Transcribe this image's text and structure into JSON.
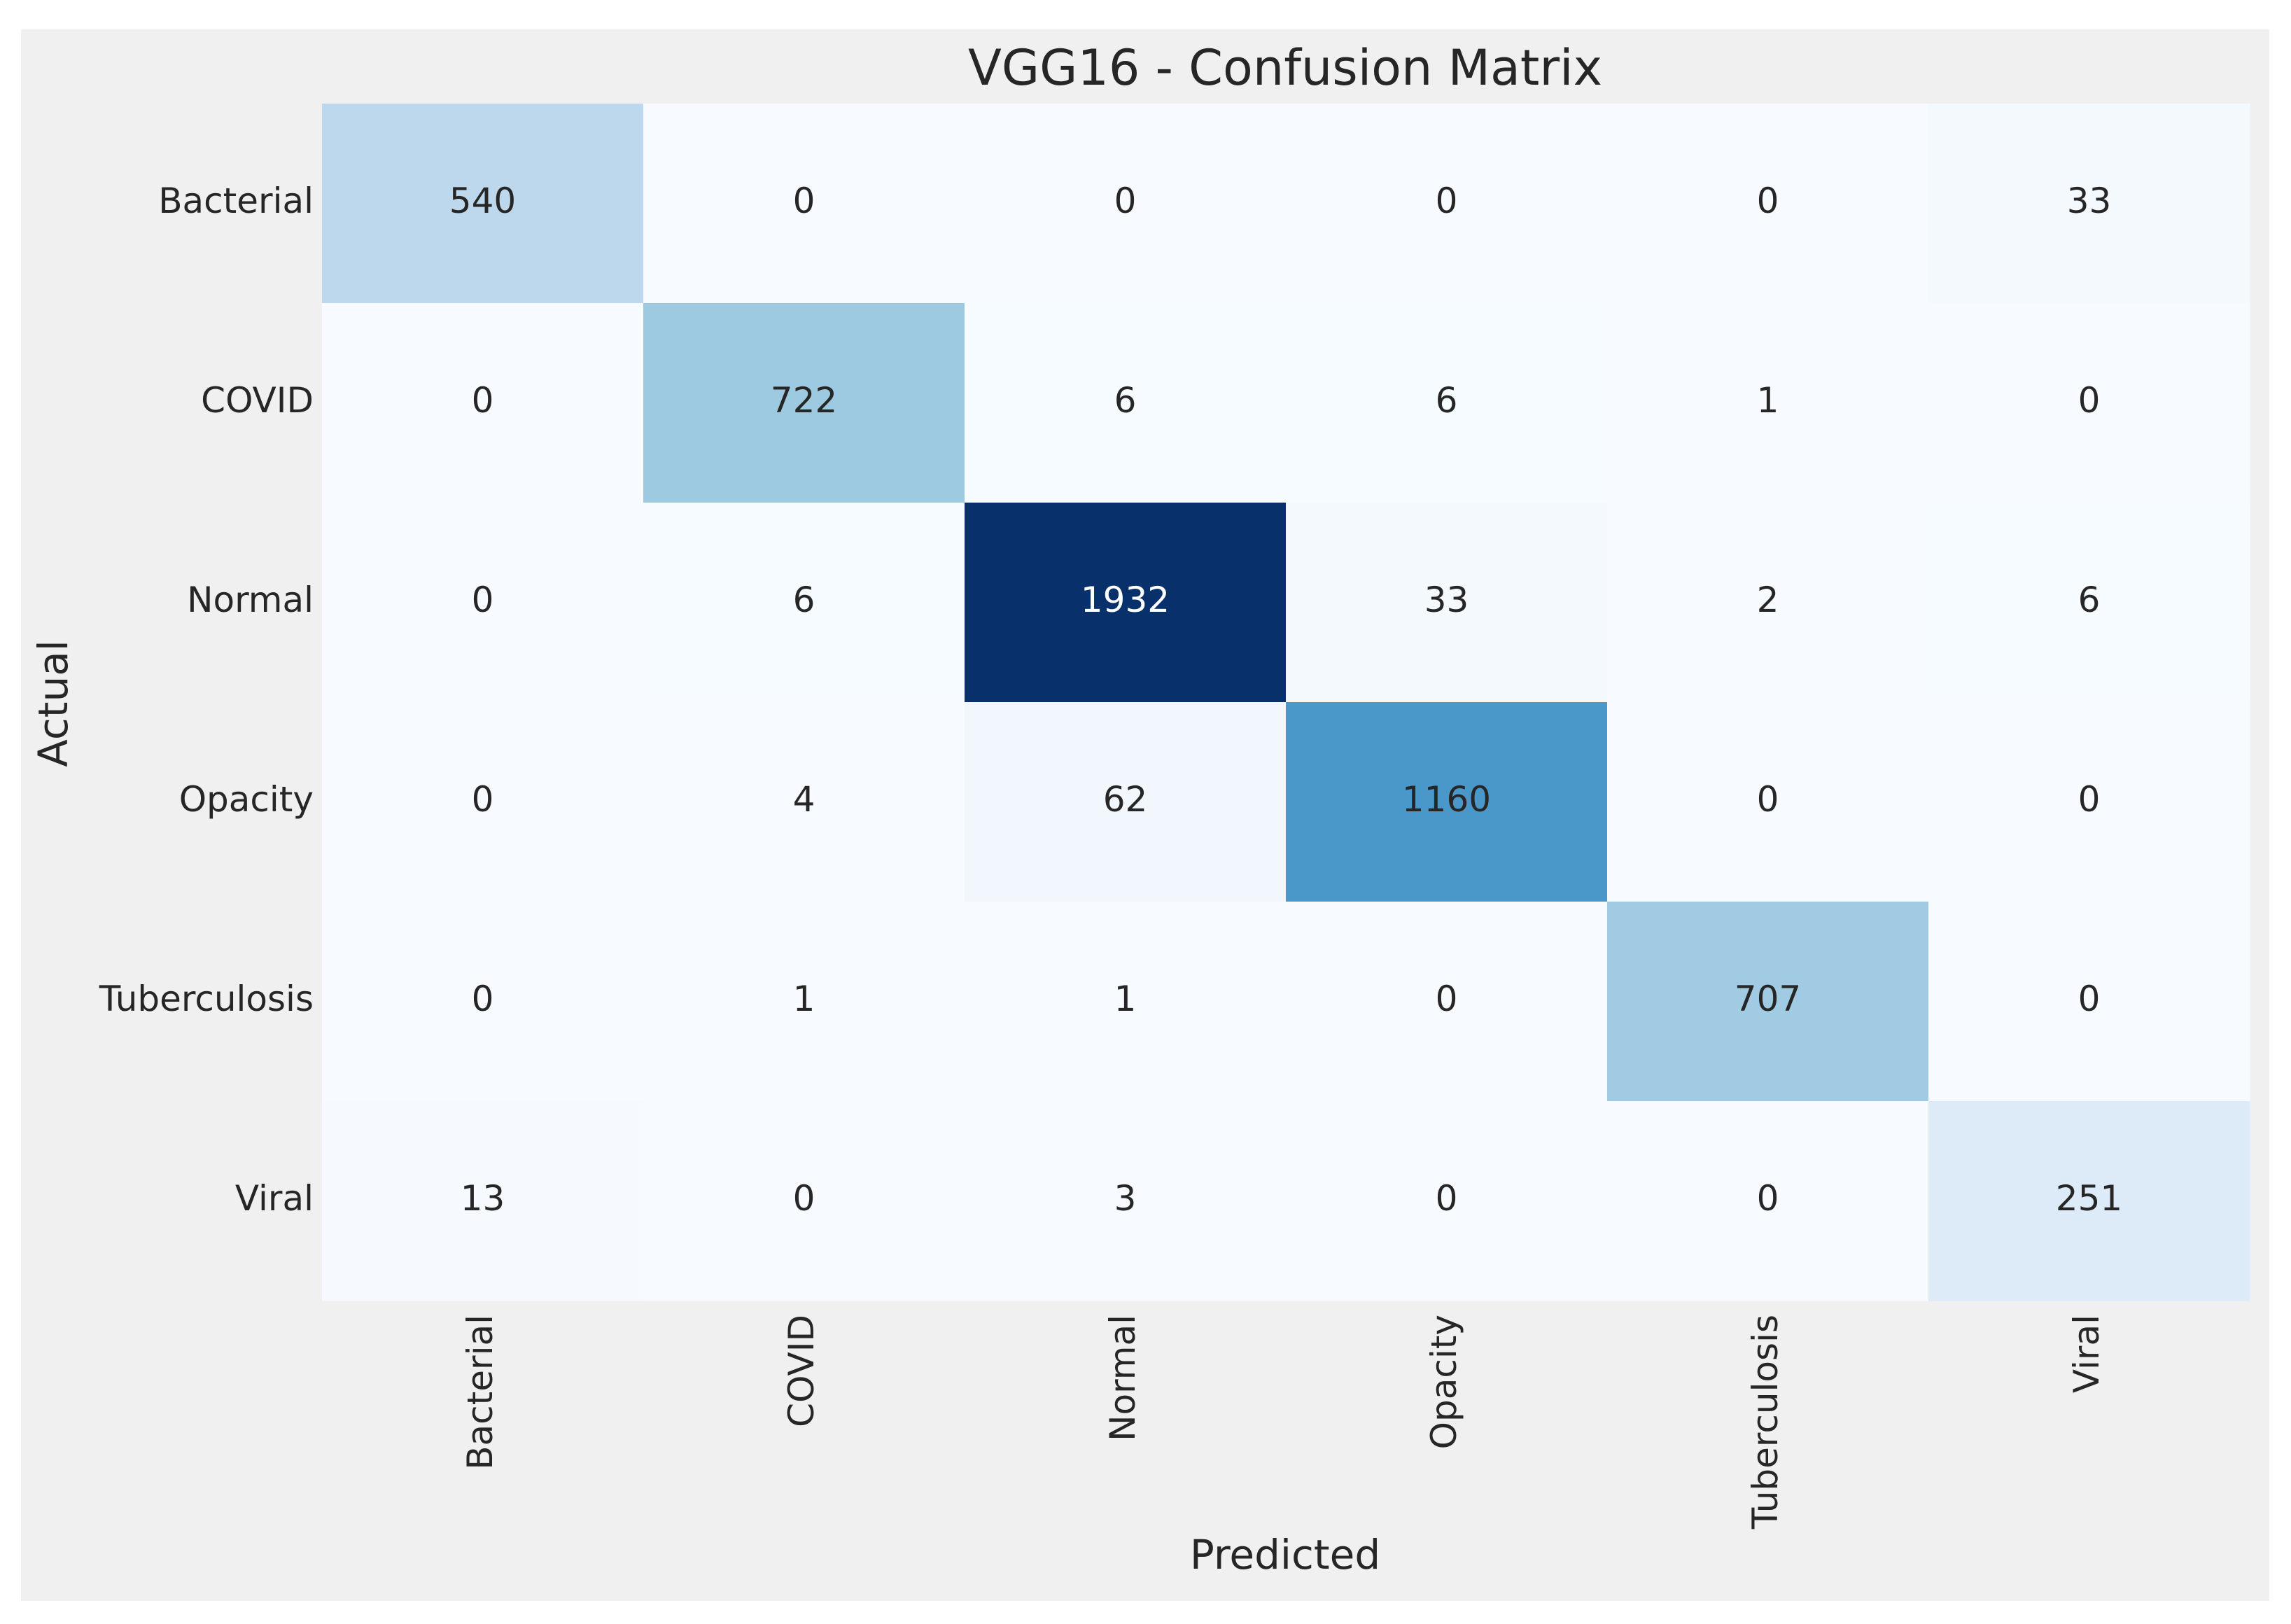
{
  "chart_data": {
    "type": "heatmap",
    "title": "VGG16 - Confusion Matrix",
    "xlabel": "Predicted",
    "ylabel": "Actual",
    "row_labels": [
      "Bacterial",
      "COVID",
      "Normal",
      "Opacity",
      "Tuberculosis",
      "Viral"
    ],
    "col_labels": [
      "Bacterial",
      "COVID",
      "Normal",
      "Opacity",
      "Tuberculosis",
      "Viral"
    ],
    "values": [
      [
        540,
        0,
        0,
        0,
        0,
        33
      ],
      [
        0,
        722,
        6,
        6,
        1,
        0
      ],
      [
        0,
        6,
        1932,
        33,
        2,
        6
      ],
      [
        0,
        4,
        62,
        1160,
        0,
        0
      ],
      [
        0,
        1,
        1,
        0,
        707,
        0
      ],
      [
        13,
        0,
        3,
        0,
        0,
        251
      ]
    ],
    "colormap": "Blues",
    "colorbar": false,
    "annotations": true
  },
  "colors": {
    "background": "#f0f0f0",
    "text": "#262626",
    "annotation_dark": "#262626",
    "annotation_light": "#ffffff",
    "blues_scale": [
      "#f7fbff",
      "#deebf7",
      "#c6dbef",
      "#9ecae1",
      "#6baed6",
      "#4292c6",
      "#2171b5",
      "#08519c",
      "#08306b"
    ]
  }
}
